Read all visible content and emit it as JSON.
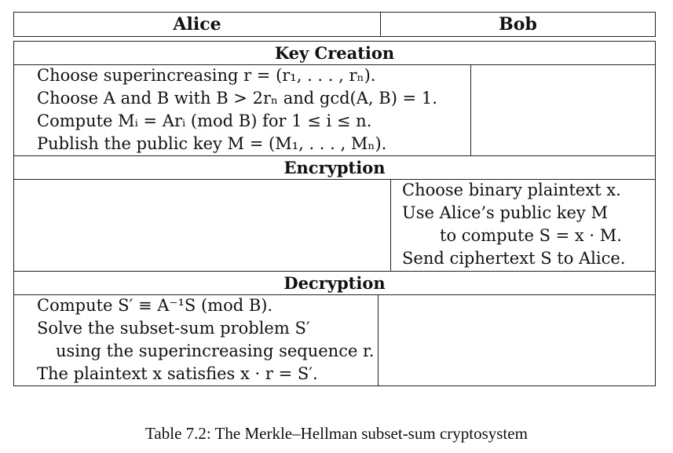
{
  "table": {
    "header": {
      "left": "Alice",
      "right": "Bob"
    },
    "sections": {
      "key_creation": {
        "title": "Key Creation",
        "alice": [
          "Choose superincreasing r = (r₁, . . . , rₙ).",
          "Choose A and B with B > 2rₙ and gcd(A, B) = 1.",
          "Compute Mᵢ = Arᵢ (mod B) for 1 ≤ i ≤ n.",
          "Publish the public key M = (M₁, . . . , Mₙ)."
        ]
      },
      "encryption": {
        "title": "Encryption",
        "bob": [
          "Choose binary plaintext x.",
          "Use Alice’s public key M",
          "to compute S = x · M.",
          "Send ciphertext S to Alice."
        ]
      },
      "decryption": {
        "title": "Decryption",
        "alice": [
          "Compute S′ ≡ A⁻¹S (mod B).",
          "Solve the subset-sum problem S′",
          "using the superincreasing sequence r.",
          "The plaintext x satisfies x · r = S′."
        ]
      }
    }
  },
  "caption": "Table 7.2: The Merkle–Hellman subset-sum cryptosystem"
}
